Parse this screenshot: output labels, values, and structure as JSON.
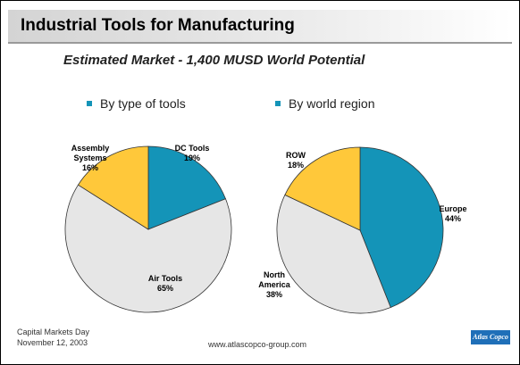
{
  "header": {
    "title": "Industrial Tools for Manufacturing",
    "subtitle": "Estimated Market - 1,400 MUSD  World Potential"
  },
  "chart_data": [
    {
      "type": "pie",
      "title": "By type of tools",
      "categories": [
        "DC Tools",
        "Air Tools",
        "Assembly Systems"
      ],
      "values": [
        19,
        65,
        16
      ],
      "value_labels": [
        "19%",
        "65%",
        "16%"
      ],
      "colors": [
        "#1494b8",
        "#e6e6e6",
        "#ffc83a"
      ]
    },
    {
      "type": "pie",
      "title": "By world region",
      "categories": [
        "Europe",
        "North America",
        "ROW"
      ],
      "values": [
        44,
        38,
        18
      ],
      "value_labels": [
        "44%",
        "38%",
        "18%"
      ],
      "colors": [
        "#1494b8",
        "#e6e6e6",
        "#ffc83a"
      ]
    }
  ],
  "footer": {
    "event": "Capital Markets Day",
    "date": "November 12, 2003",
    "url": "www.atlascopco-group.com",
    "logo": "Atlas Copco"
  }
}
